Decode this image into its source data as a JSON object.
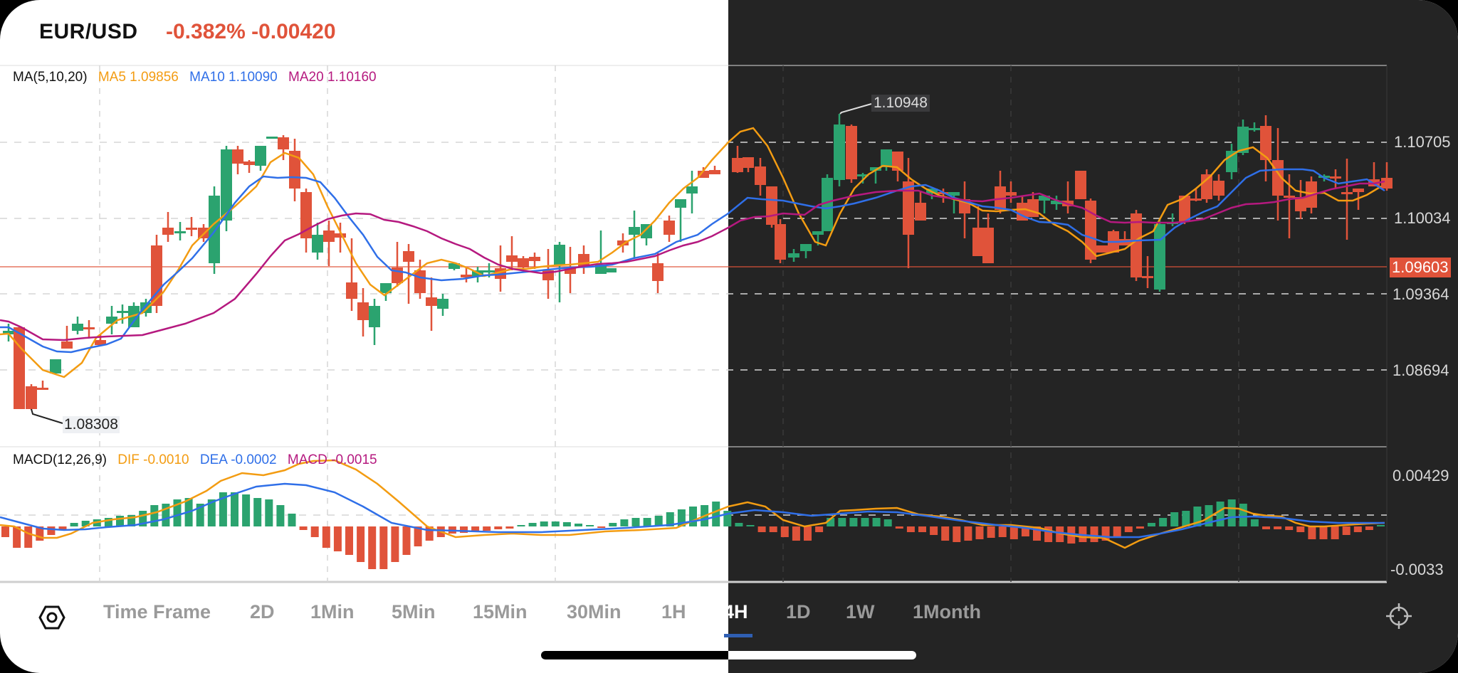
{
  "header": {
    "symbol": "EUR/USD",
    "change": "-0.382% -0.00420"
  },
  "ma_legend": {
    "title": "MA(5,10,20)",
    "ma5": "MA5 1.09856",
    "ma10": "MA10 1.10090",
    "ma20": "MA20 1.10160"
  },
  "macd_legend": {
    "title": "MACD(12,26,9)",
    "dif": "DIF -0.0010",
    "dea": "DEA -0.0002",
    "macd": "MACD -0.0015"
  },
  "price_axis": [
    "1.10705",
    "1.10034",
    "1.09364",
    "1.08694"
  ],
  "current_price": "1.09603",
  "macd_axis": [
    "0.00429",
    "-0.0033"
  ],
  "annotations": {
    "high": "1.10948",
    "low": "1.08308"
  },
  "toolbar": {
    "settings_icon": "hexagon-settings-icon",
    "timeframes": [
      "Time Frame",
      "2D",
      "1Min",
      "5Min",
      "15Min",
      "30Min",
      "1H",
      "4H",
      "1D",
      "1W",
      "1Month"
    ],
    "active": "4H",
    "crosshair_icon": "crosshair-icon"
  },
  "colors": {
    "up": "#2ba36f",
    "down": "#e0533a",
    "ma5": "#f39c12",
    "ma10": "#2f6fe8",
    "ma20": "#b5197f",
    "accent": "#2f5fb3",
    "dark_bg": "#242424"
  },
  "chart_data": {
    "type": "candlestick",
    "title": "EUR/USD 4H",
    "y_ticks": [
      1.10705,
      1.10034,
      1.09364,
      1.08694
    ],
    "ylim": [
      1.0815,
      1.112
    ],
    "current_price": 1.09603,
    "max_label": 1.10948,
    "min_label": 1.08308,
    "indicators": {
      "MA5": 1.09856,
      "MA10": 1.1009,
      "MA20": 1.1016,
      "DIF": -0.001,
      "DEA": -0.0002,
      "MACD": -0.0015
    },
    "macd_ylim": [
      -0.0033,
      0.00429
    ]
  }
}
